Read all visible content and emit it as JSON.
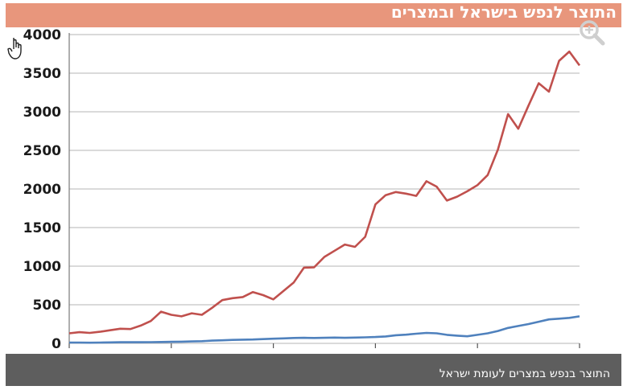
{
  "header": {
    "title": "התוצר לנפש בישראל ובמצרים"
  },
  "caption": "התוצר בנפש במצרים לעומת ישראל",
  "icons": {
    "zoom": "zoom-in-icon",
    "cursor": "hand-pointer-icon"
  },
  "colors": {
    "header_bg": "#e8967c",
    "footer_bg": "#5e5e5e",
    "israel": "#c0504d",
    "egypt": "#4f81bd"
  },
  "chart_data": {
    "type": "line",
    "title": "התוצר לנפש בישראל ובמצרים",
    "xlabel": "",
    "ylabel": "",
    "xlim": [
      1965,
      2015
    ],
    "ylim": [
      0,
      4000
    ],
    "grid": true,
    "yticks": [
      0,
      500,
      1000,
      1500,
      2000,
      2500,
      3000,
      3500,
      4000
    ],
    "xticks": [
      1965,
      1975,
      1985,
      1995,
      2005,
      2015
    ],
    "x": [
      1965,
      1966,
      1967,
      1968,
      1969,
      1970,
      1971,
      1972,
      1973,
      1974,
      1975,
      1976,
      1977,
      1978,
      1979,
      1980,
      1981,
      1982,
      1983,
      1984,
      1985,
      1986,
      1987,
      1988,
      1989,
      1990,
      1991,
      1992,
      1993,
      1994,
      1995,
      1996,
      1997,
      1998,
      1999,
      2000,
      2001,
      2002,
      2003,
      2004,
      2005,
      2006,
      2007,
      2008,
      2009,
      2010,
      2011,
      2012,
      2013,
      2014,
      2015
    ],
    "series": [
      {
        "color": "#c0504d",
        "values": [
          130,
          145,
          135,
          150,
          170,
          190,
          185,
          230,
          290,
          410,
          370,
          350,
          390,
          370,
          460,
          560,
          585,
          600,
          665,
          625,
          570,
          680,
          790,
          980,
          985,
          1120,
          1200,
          1280,
          1250,
          1380,
          1800,
          1920,
          1960,
          1940,
          1910,
          2100,
          2030,
          1850,
          1900,
          1970,
          2050,
          2180,
          2510,
          2970,
          2780,
          3080,
          3370,
          3260,
          3660,
          3780,
          3600
        ]
      },
      {
        "color": "#4f81bd",
        "values": [
          10,
          10,
          8,
          10,
          12,
          15,
          15,
          15,
          16,
          18,
          20,
          22,
          25,
          28,
          35,
          40,
          45,
          48,
          50,
          55,
          60,
          65,
          70,
          72,
          70,
          72,
          75,
          72,
          75,
          78,
          82,
          90,
          105,
          112,
          125,
          135,
          130,
          110,
          100,
          92,
          110,
          130,
          160,
          200,
          225,
          250,
          280,
          310,
          320,
          330,
          350
        ]
      }
    ]
  }
}
